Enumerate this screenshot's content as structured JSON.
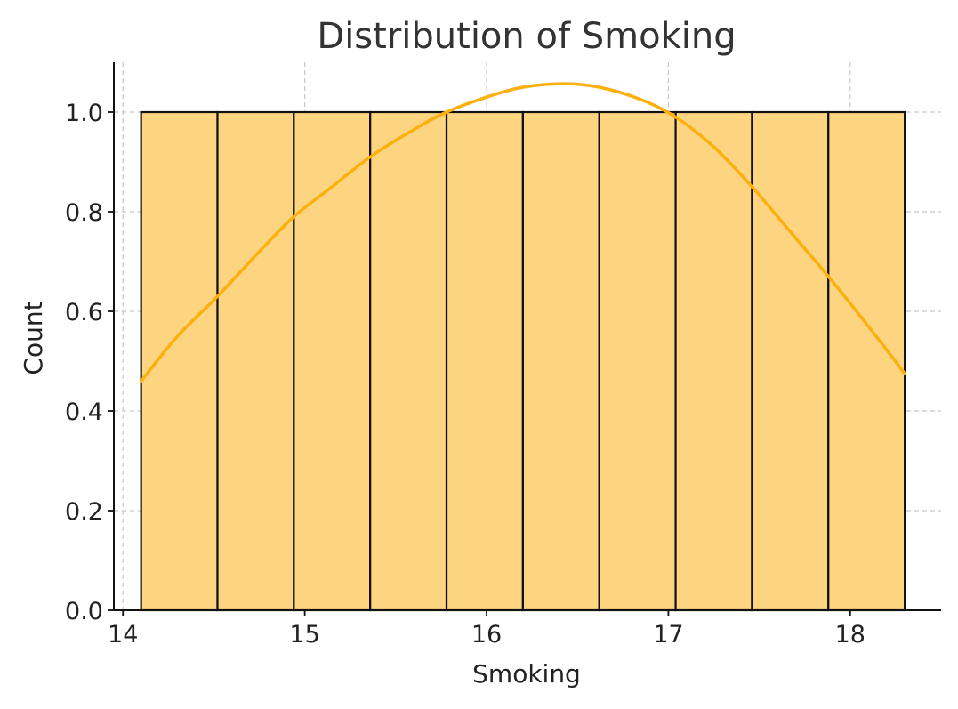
{
  "chart_data": {
    "type": "bar",
    "subtype": "histogram-with-kde",
    "title": "Distribution of Smoking",
    "xlabel": "Smoking",
    "ylabel": "Count",
    "xlim": [
      13.95,
      18.5
    ],
    "ylim": [
      0,
      1.1
    ],
    "xticks": [
      14,
      15,
      16,
      17,
      18
    ],
    "xtick_labels": [
      "14",
      "15",
      "16",
      "17",
      "18"
    ],
    "yticks": [
      0.0,
      0.2,
      0.4,
      0.6,
      0.8,
      1.0
    ],
    "ytick_labels": [
      "0.0",
      "0.2",
      "0.4",
      "0.6",
      "0.8",
      "1.0"
    ],
    "grid": true,
    "bins": [
      {
        "x0": 14.1,
        "x1": 14.52,
        "count": 1
      },
      {
        "x0": 14.52,
        "x1": 14.94,
        "count": 1
      },
      {
        "x0": 14.94,
        "x1": 15.36,
        "count": 1
      },
      {
        "x0": 15.36,
        "x1": 15.78,
        "count": 1
      },
      {
        "x0": 15.78,
        "x1": 16.2,
        "count": 1
      },
      {
        "x0": 16.2,
        "x1": 16.62,
        "count": 1
      },
      {
        "x0": 16.62,
        "x1": 17.04,
        "count": 1
      },
      {
        "x0": 17.04,
        "x1": 17.46,
        "count": 1
      },
      {
        "x0": 17.46,
        "x1": 17.88,
        "count": 1
      },
      {
        "x0": 17.88,
        "x1": 18.3,
        "count": 1
      }
    ],
    "kde_curve": [
      {
        "x": 14.1,
        "y": 0.46
      },
      {
        "x": 14.3,
        "y": 0.55
      },
      {
        "x": 14.52,
        "y": 0.63
      },
      {
        "x": 14.75,
        "y": 0.72
      },
      {
        "x": 14.94,
        "y": 0.79
      },
      {
        "x": 15.15,
        "y": 0.85
      },
      {
        "x": 15.36,
        "y": 0.91
      },
      {
        "x": 15.6,
        "y": 0.965
      },
      {
        "x": 15.78,
        "y": 1.0
      },
      {
        "x": 16.0,
        "y": 1.03
      },
      {
        "x": 16.2,
        "y": 1.05
      },
      {
        "x": 16.43,
        "y": 1.057
      },
      {
        "x": 16.62,
        "y": 1.05
      },
      {
        "x": 16.85,
        "y": 1.025
      },
      {
        "x": 17.04,
        "y": 0.99
      },
      {
        "x": 17.25,
        "y": 0.93
      },
      {
        "x": 17.46,
        "y": 0.85
      },
      {
        "x": 17.67,
        "y": 0.76
      },
      {
        "x": 17.88,
        "y": 0.67
      },
      {
        "x": 18.1,
        "y": 0.57
      },
      {
        "x": 18.3,
        "y": 0.475
      }
    ],
    "colors": {
      "bar_fill": "#FDD47F",
      "bar_edge": "#111111",
      "kde_line": "#FBB00D",
      "grid": "#C8C8C8",
      "axis": "#111111",
      "title": "#333333"
    }
  }
}
